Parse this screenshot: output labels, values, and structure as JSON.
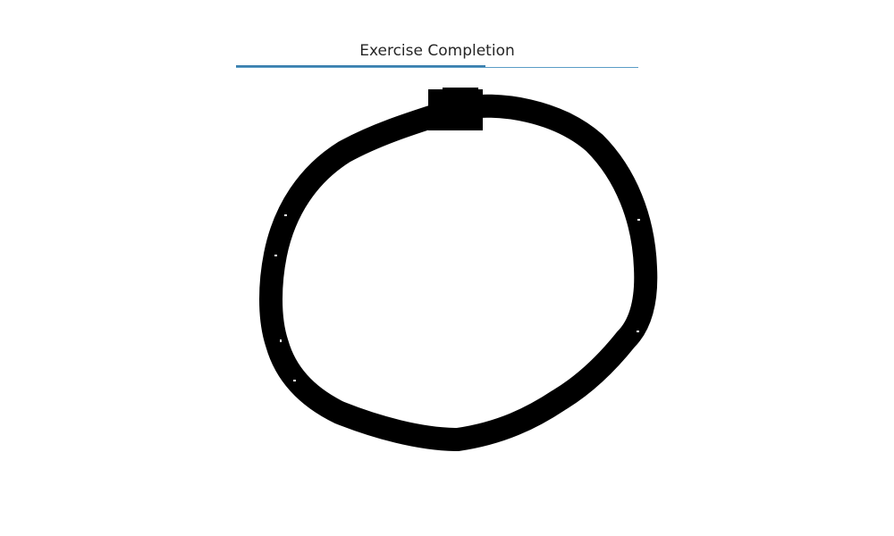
{
  "header": {
    "title": "Exercise Completion"
  },
  "progress": {
    "fraction": 0.62
  },
  "drawing": {
    "shape": "hand-drawn circle",
    "stroke_color": "#000000",
    "background_color": "#ffffff"
  },
  "colors": {
    "progress_track": "#5b9dc6",
    "progress_fill": "#3a7fae",
    "title_text": "#262626"
  }
}
